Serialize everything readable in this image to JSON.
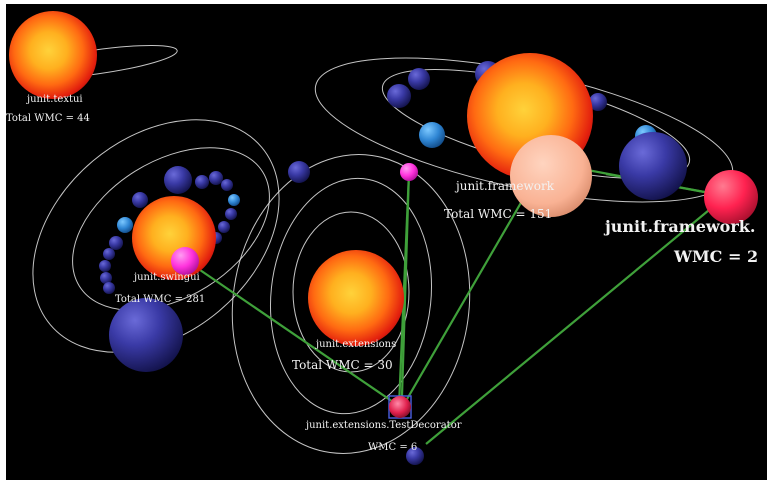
{
  "scene": {
    "packages": [
      {
        "name": "junit.textui",
        "metric": "Total WMC = 44"
      },
      {
        "name": "junit.swingui",
        "metric": "Total WMC = 281"
      },
      {
        "name": "junit.extensions",
        "metric": "Total WMC = 30"
      },
      {
        "name": "junit.framework",
        "metric": "Total WMC = 151"
      }
    ],
    "focus_classes": [
      {
        "name": "junit.extensions.TestDecorator",
        "metric": "WMC = 6"
      },
      {
        "name": "junit.framework.",
        "metric": "WMC = 2"
      }
    ]
  },
  "colors": {
    "background": "#000000",
    "orbit": "#e8e8e8",
    "dependency_link": "#3fa03a",
    "class_sphere": "#2e2e8a",
    "class_sphere_light": "#2f86d4",
    "highlight_magenta": "#ff33dd",
    "highlight_red": "#ff2250",
    "highlight_peach": "#f9b294"
  }
}
